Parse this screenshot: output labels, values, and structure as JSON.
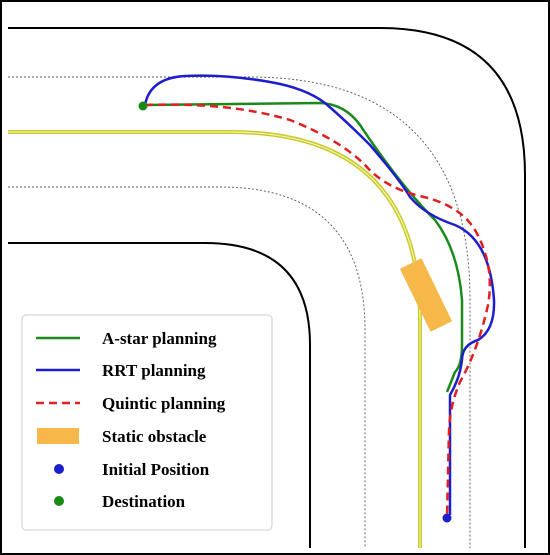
{
  "legend": {
    "items": [
      {
        "label": "A-star planning",
        "marker": "line",
        "color": "#1a8a1a"
      },
      {
        "label": "RRT planning",
        "marker": "line",
        "color": "#1d1dcc"
      },
      {
        "label": "Quintic planning",
        "marker": "dashed-line",
        "color": "#e02020"
      },
      {
        "label": "Static obstacle",
        "marker": "rectangle",
        "color": "#f7b84a"
      },
      {
        "label": "Initial Position",
        "marker": "dot",
        "color": "#1d1dcc"
      },
      {
        "label": "Destination",
        "marker": "dot",
        "color": "#1a8a1a"
      }
    ]
  },
  "colors": {
    "road_edge": "#000000",
    "lane_divider": "#d8d83a",
    "lane_marking": "#555555",
    "frame": "#000000"
  }
}
